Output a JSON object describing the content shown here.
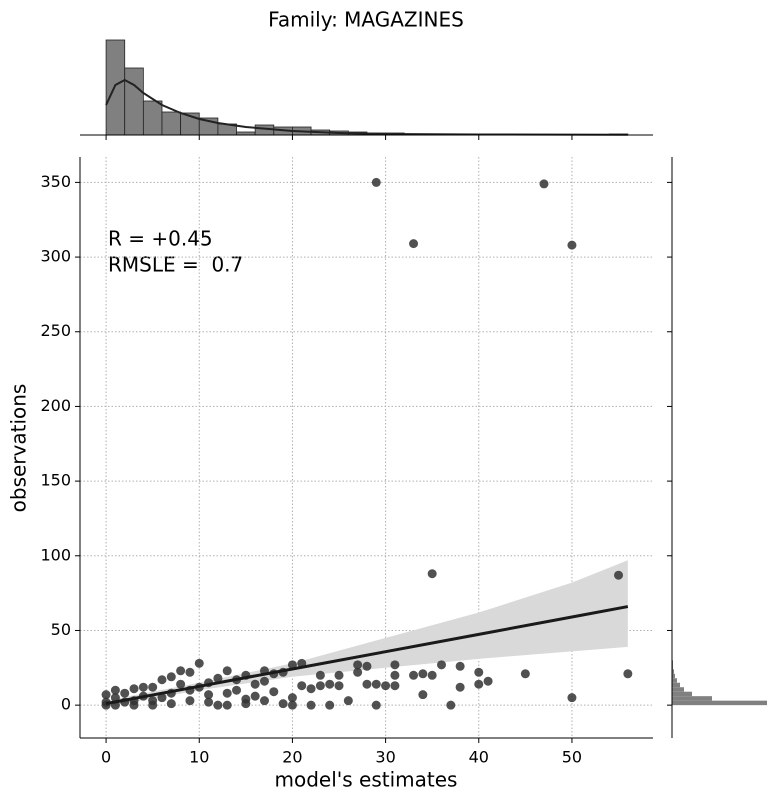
{
  "chart_data": {
    "type": "scatter",
    "title": "Family: MAGAZINES",
    "x_label": "model's estimates",
    "y_label": "observations",
    "annotations": [
      "R = +0.45",
      "RMSLE =  0.7"
    ],
    "color": "#333333",
    "grid": true,
    "xlim": [
      -2.8,
      58.7
    ],
    "ylim": [
      -22,
      367
    ],
    "xticks": [
      0,
      10,
      20,
      30,
      40,
      50
    ],
    "yticks": [
      0,
      50,
      100,
      150,
      200,
      250,
      300,
      350
    ],
    "x": [
      29,
      47,
      33,
      50,
      35,
      55,
      56,
      50,
      45,
      40,
      41,
      40,
      38,
      38,
      36,
      34,
      35,
      33,
      34,
      37,
      31,
      31,
      31,
      29,
      29,
      30,
      28,
      28,
      27,
      27,
      26,
      25,
      25,
      24,
      24,
      23,
      23,
      22,
      22,
      21,
      21,
      20,
      20,
      20,
      19,
      18,
      18,
      17,
      17,
      16,
      16,
      15,
      15,
      14,
      14,
      13,
      13,
      12,
      12,
      11,
      11,
      10,
      10,
      9,
      9,
      8,
      8,
      7,
      7,
      6,
      6,
      5,
      5,
      4,
      4,
      3,
      3,
      2,
      2,
      1,
      1,
      0,
      0,
      0,
      1,
      3,
      5,
      7,
      9,
      11,
      13,
      15,
      17,
      19
    ],
    "y": [
      350,
      349,
      309,
      308,
      88,
      87,
      21,
      5,
      21,
      22,
      16,
      14,
      26,
      12,
      27,
      21,
      20,
      20,
      7,
      0,
      27,
      20,
      13,
      0,
      14,
      13,
      26,
      14,
      27,
      22,
      3,
      20,
      13,
      0,
      14,
      20,
      13,
      0,
      11,
      28,
      13,
      27,
      5,
      0,
      22,
      21,
      9,
      23,
      16,
      14,
      6,
      20,
      4,
      17,
      10,
      23,
      8,
      18,
      0,
      15,
      7,
      28,
      12,
      22,
      10,
      23,
      14,
      19,
      8,
      17,
      5,
      12,
      3,
      12,
      6,
      11,
      3,
      8,
      2,
      10,
      5,
      7,
      2,
      0,
      0,
      0,
      0,
      1,
      3,
      2,
      0,
      1,
      3,
      1
    ],
    "regression": {
      "color": "#1a1a1a",
      "band_color": "#d9d9d9",
      "x": [
        0,
        10,
        20,
        30,
        40,
        50,
        56
      ],
      "y": [
        1,
        12.6,
        24.2,
        35.8,
        47.4,
        59,
        66
      ],
      "lower": [
        -1,
        10,
        19,
        25,
        31,
        36,
        39
      ],
      "upper": [
        3,
        15,
        28,
        45,
        62,
        82,
        97
      ]
    },
    "marginal_x": {
      "color": "#808080",
      "ylim": [
        0,
        190
      ],
      "bins": [
        0,
        2,
        4,
        6,
        8,
        10,
        12,
        14,
        16,
        18,
        20,
        22,
        24,
        26,
        28,
        30,
        32,
        34,
        36,
        38,
        40,
        42,
        44,
        46,
        48,
        50,
        52,
        54,
        56
      ],
      "counts": [
        190,
        134,
        68,
        46,
        44,
        34,
        22,
        6,
        20,
        16,
        16,
        10,
        8,
        6,
        4,
        4,
        2,
        2,
        2,
        2,
        1,
        1,
        1,
        0,
        0,
        0,
        0,
        2
      ],
      "kde_x": [
        0,
        1,
        2,
        3,
        4,
        6,
        8,
        10,
        12,
        15,
        20,
        25,
        30,
        40,
        56
      ],
      "kde_y": [
        60,
        100,
        110,
        100,
        84,
        60,
        44,
        32,
        24,
        16,
        8,
        4,
        2,
        1,
        0.4
      ]
    },
    "marginal_y": {
      "color": "#808080",
      "xlim": [
        0,
        95
      ],
      "bins": [
        0,
        3,
        6,
        9,
        12,
        15,
        18,
        21,
        24,
        27,
        30
      ],
      "counts": [
        95,
        40,
        20,
        12,
        8,
        5,
        3,
        2,
        1,
        1
      ]
    }
  }
}
